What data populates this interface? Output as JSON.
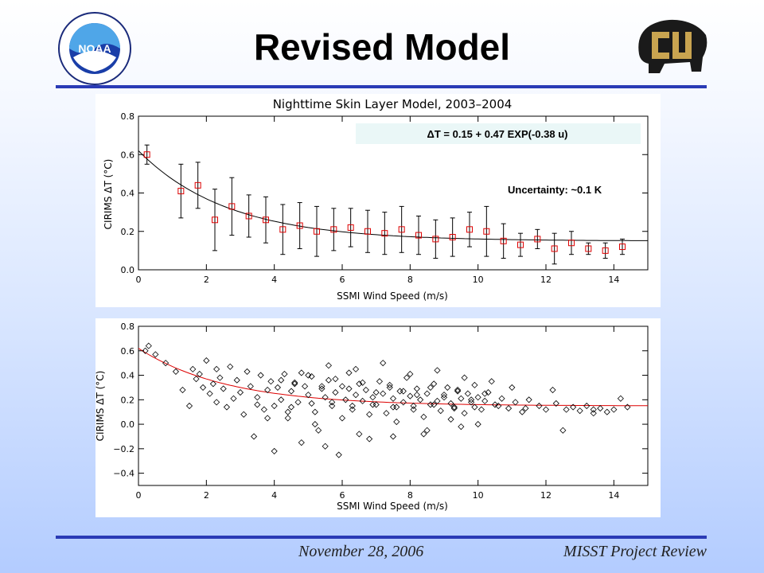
{
  "slide": {
    "title": "Revised Model",
    "footer_date": "November 28, 2006",
    "footer_event": "MISST Project Review",
    "left_logo_text": "NOAA",
    "left_logo_ring_text": "NATIONAL OCEANIC AND ATMOSPHERIC ADMINISTRATION · U.S. DEPARTMENT OF COMMERCE",
    "right_logo_text": "CU",
    "accent_color": "#2a3bb5"
  },
  "chart_data": [
    {
      "type": "scatter",
      "title": "Nighttime Skin Layer Model, 2003–2004",
      "xlabel": "SSMI Wind Speed (m/s)",
      "ylabel": "CIRIMS ΔT (°C)",
      "xlim": [
        0,
        15
      ],
      "ylim": [
        0,
        0.8
      ],
      "xticks": [
        0,
        2,
        4,
        6,
        8,
        10,
        12,
        14
      ],
      "yticks": [
        0.0,
        0.2,
        0.4,
        0.6,
        0.8
      ],
      "ytick_labels": [
        "0.0",
        "0.2",
        "0.4",
        "0.6",
        "0.8"
      ],
      "equation_text": "ΔT = 0.15 + 0.47 EXP(-0.38 u)",
      "uncertainty_text": "Uncertainty: ~0.1 K",
      "fit": {
        "a": 0.15,
        "b": 0.47,
        "c": -0.38
      },
      "marker": "square",
      "marker_color": "#dd0000",
      "x": [
        0.25,
        1.25,
        1.75,
        2.25,
        2.75,
        3.25,
        3.75,
        4.25,
        4.75,
        5.25,
        5.75,
        6.25,
        6.75,
        7.25,
        7.75,
        8.25,
        8.75,
        9.25,
        9.75,
        10.25,
        10.75,
        11.25,
        11.75,
        12.25,
        12.75,
        13.25,
        13.75,
        14.25
      ],
      "y": [
        0.6,
        0.41,
        0.44,
        0.26,
        0.33,
        0.28,
        0.26,
        0.21,
        0.23,
        0.2,
        0.21,
        0.22,
        0.2,
        0.19,
        0.21,
        0.18,
        0.16,
        0.17,
        0.21,
        0.2,
        0.15,
        0.13,
        0.16,
        0.11,
        0.14,
        0.11,
        0.1,
        0.12
      ],
      "err": [
        0.05,
        0.14,
        0.12,
        0.16,
        0.15,
        0.11,
        0.12,
        0.13,
        0.12,
        0.13,
        0.11,
        0.1,
        0.11,
        0.11,
        0.12,
        0.1,
        0.1,
        0.1,
        0.09,
        0.13,
        0.09,
        0.06,
        0.05,
        0.08,
        0.06,
        0.03,
        0.04,
        0.04
      ]
    },
    {
      "type": "scatter",
      "title": "",
      "xlabel": "SSMI Wind Speed (m/s)",
      "ylabel": "CIRIMS ΔT (°C)",
      "xlim": [
        0,
        15
      ],
      "ylim": [
        -0.5,
        0.8
      ],
      "xticks": [
        0,
        2,
        4,
        6,
        8,
        10,
        12,
        14
      ],
      "yticks": [
        -0.4,
        -0.2,
        0.0,
        0.2,
        0.4,
        0.6,
        0.8
      ],
      "ytick_labels": [
        "−0.4",
        "−0.2",
        "0.0",
        "0.2",
        "0.4",
        "0.6",
        "0.8"
      ],
      "fit": {
        "a": 0.15,
        "b": 0.47,
        "c": -0.38
      },
      "fit_color": "#dd0000",
      "marker": "diamond",
      "marker_color": "#000000",
      "x": [
        0.2,
        0.3,
        0.5,
        0.8,
        1.1,
        1.3,
        1.5,
        1.6,
        1.7,
        1.8,
        1.9,
        2.0,
        2.1,
        2.2,
        2.3,
        2.3,
        2.4,
        2.5,
        2.6,
        2.7,
        2.8,
        2.9,
        3.0,
        3.1,
        3.2,
        3.3,
        3.4,
        3.5,
        3.6,
        3.7,
        3.8,
        3.9,
        4.0,
        4.1,
        4.2,
        4.3,
        4.4,
        4.5,
        4.6,
        4.7,
        4.8,
        4.9,
        5.0,
        5.1,
        5.2,
        5.3,
        5.4,
        5.5,
        5.6,
        5.7,
        5.8,
        5.9,
        6.0,
        6.1,
        6.2,
        6.3,
        6.4,
        6.5,
        6.6,
        6.7,
        6.8,
        6.9,
        7.0,
        7.1,
        7.2,
        7.3,
        7.4,
        7.5,
        7.6,
        7.7,
        7.8,
        7.9,
        8.0,
        8.1,
        8.2,
        8.3,
        8.4,
        8.5,
        8.6,
        8.7,
        8.8,
        8.9,
        9.0,
        9.1,
        9.2,
        9.3,
        9.4,
        9.5,
        9.6,
        9.7,
        9.8,
        9.9,
        10.0,
        10.1,
        10.2,
        10.3,
        10.5,
        10.7,
        10.9,
        11.1,
        11.3,
        11.5,
        11.8,
        12.0,
        12.3,
        12.5,
        12.8,
        13.0,
        13.2,
        13.4,
        13.6,
        13.8,
        14.0,
        14.2,
        14.4,
        4.2,
        4.6,
        5.0,
        5.4,
        5.8,
        6.2,
        6.6,
        7.0,
        7.4,
        7.8,
        8.2,
        8.6,
        9.0,
        9.4,
        9.8,
        10.2,
        3.8,
        4.4,
        5.2,
        6.0,
        6.8,
        7.6,
        8.4,
        9.2,
        10.0,
        5.5,
        6.5,
        7.5,
        8.5,
        9.5,
        4.8,
        5.6,
        6.4,
        7.2,
        8.0,
        8.8,
        9.6,
        10.4,
        11.0,
        12.2,
        3.5,
        4.0,
        4.5,
        5.1,
        5.7,
        6.3,
        6.9,
        7.5,
        8.1,
        8.7,
        9.3,
        9.9,
        10.6,
        11.4,
        12.6,
        13.4
      ],
      "y": [
        0.6,
        0.64,
        0.57,
        0.5,
        0.43,
        0.28,
        0.15,
        0.45,
        0.37,
        0.41,
        0.3,
        0.52,
        0.25,
        0.33,
        0.45,
        0.18,
        0.38,
        0.29,
        0.14,
        0.47,
        0.21,
        0.36,
        0.26,
        0.08,
        0.43,
        0.31,
        -0.1,
        0.22,
        0.4,
        0.12,
        0.28,
        0.35,
        -0.22,
        0.3,
        0.2,
        0.41,
        0.05,
        0.27,
        0.34,
        0.18,
        -0.15,
        0.31,
        0.24,
        0.39,
        0.1,
        -0.05,
        0.29,
        0.22,
        0.36,
        0.15,
        0.26,
        -0.25,
        0.31,
        0.2,
        0.42,
        0.12,
        0.24,
        0.33,
        0.19,
        0.28,
        -0.12,
        0.22,
        0.16,
        0.35,
        0.25,
        0.09,
        0.3,
        0.21,
        0.14,
        0.27,
        0.18,
        0.38,
        0.23,
        0.12,
        0.29,
        0.2,
        -0.08,
        0.25,
        0.16,
        0.33,
        0.19,
        0.11,
        0.24,
        0.3,
        0.17,
        0.14,
        0.27,
        0.21,
        0.09,
        0.25,
        0.18,
        0.32,
        0.22,
        0.12,
        0.19,
        0.26,
        0.16,
        0.21,
        0.13,
        0.18,
        0.1,
        0.2,
        0.15,
        0.12,
        0.17,
        -0.05,
        0.14,
        0.11,
        0.15,
        0.09,
        0.13,
        0.1,
        0.12,
        0.21,
        0.14,
        0.36,
        0.33,
        0.4,
        0.31,
        0.37,
        0.29,
        0.34,
        0.26,
        0.32,
        0.27,
        0.24,
        0.3,
        0.22,
        0.28,
        0.2,
        0.25,
        0.05,
        0.1,
        0.0,
        0.05,
        0.08,
        0.02,
        0.06,
        0.04,
        0.0,
        -0.18,
        -0.08,
        -0.1,
        -0.05,
        -0.02,
        0.42,
        0.48,
        0.45,
        0.5,
        0.41,
        0.44,
        0.38,
        0.35,
        0.3,
        0.28,
        0.16,
        0.15,
        0.14,
        0.17,
        0.18,
        0.15,
        0.16,
        0.14,
        0.15,
        0.16,
        0.13,
        0.14,
        0.15,
        0.13,
        0.12,
        0.12
      ]
    }
  ]
}
